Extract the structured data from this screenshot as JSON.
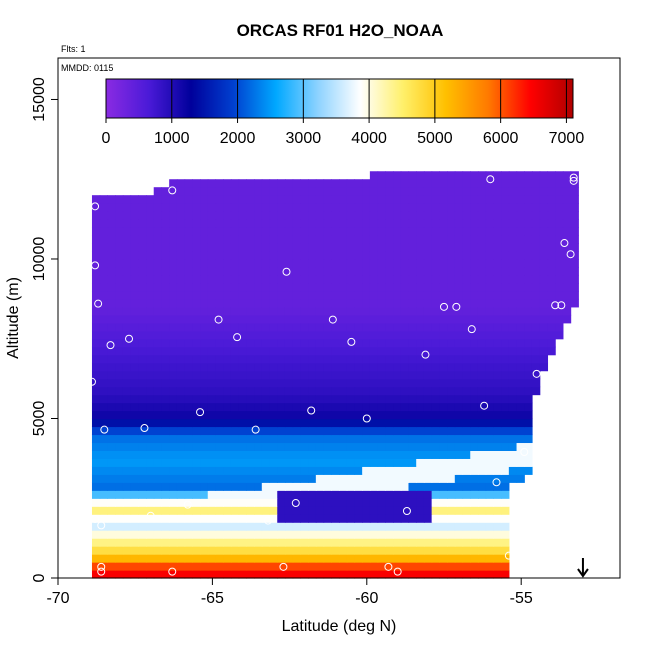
{
  "chart_data": {
    "type": "heatmap",
    "title": "ORCAS RF01 H2O_NOAA",
    "notes": [
      "Flts: 1",
      "MMDD: 0115"
    ],
    "xlabel": "Latitude (deg N)",
    "ylabel": "Altitude (m)",
    "xlim": [
      -70,
      -51.8
    ],
    "ylim": [
      0,
      16300
    ],
    "xticks": [
      -70,
      -65,
      -60,
      -55
    ],
    "xtick_labels": [
      "-70",
      "-65",
      "-60",
      "-55"
    ],
    "yticks": [
      0,
      5000,
      10000,
      15000
    ],
    "ytick_labels": [
      "0",
      "5000",
      "10000",
      "15000"
    ],
    "grid": false,
    "colorbar": {
      "range": [
        0,
        7100
      ],
      "ticks": [
        0,
        1000,
        2000,
        3000,
        4000,
        5000,
        6000,
        7000
      ],
      "tick_labels": [
        "0",
        "1000",
        "2000",
        "3000",
        "4000",
        "5000",
        "6000",
        "7000"
      ],
      "colors": [
        "#8a2be2",
        "#4b1ad8",
        "#00009b",
        "#0040d0",
        "#00a8ff",
        "#8fd3ff",
        "#ffffff",
        "#fff06a",
        "#ffc000",
        "#ff7a00",
        "#ff0000",
        "#b00000"
      ]
    },
    "coverage": [
      {
        "lat": -68.9,
        "top": 11900
      },
      {
        "lat": -67.2,
        "top": 12000
      },
      {
        "lat": -66.3,
        "top": 12400
      },
      {
        "lat": -62.0,
        "top": 12600
      },
      {
        "lat": -53.4,
        "top": 12700
      },
      {
        "lat": -53.2,
        "top": 12800
      }
    ],
    "layers": [
      {
        "alt": 8500,
        "value": 400
      },
      {
        "alt": 7000,
        "value": 700
      },
      {
        "alt": 5800,
        "value": 900
      },
      {
        "alt": 5000,
        "value": 1200
      },
      {
        "alt": 4500,
        "value": 2200
      },
      {
        "alt": 3700,
        "value": 2500
      },
      {
        "alt": 2800,
        "value": 2200
      },
      {
        "alt": 2200,
        "value": 4600
      },
      {
        "alt": 1700,
        "value": 3500
      },
      {
        "alt": 1200,
        "value": 4300
      },
      {
        "alt": 700,
        "value": 5000
      },
      {
        "alt": 250,
        "value": 6500
      }
    ],
    "points": [
      {
        "lat": -68.8,
        "alt": 11650
      },
      {
        "lat": -66.3,
        "alt": 12150
      },
      {
        "lat": -56.0,
        "alt": 12500
      },
      {
        "lat": -53.3,
        "alt": 12450
      },
      {
        "lat": -53.3,
        "alt": 12550
      },
      {
        "lat": -68.8,
        "alt": 9800
      },
      {
        "lat": -62.6,
        "alt": 9600
      },
      {
        "lat": -53.6,
        "alt": 10500
      },
      {
        "lat": -53.4,
        "alt": 10150
      },
      {
        "lat": -68.7,
        "alt": 8600
      },
      {
        "lat": -64.8,
        "alt": 8100
      },
      {
        "lat": -61.1,
        "alt": 8100
      },
      {
        "lat": -57.5,
        "alt": 8500
      },
      {
        "lat": -57.1,
        "alt": 8500
      },
      {
        "lat": -53.9,
        "alt": 8550
      },
      {
        "lat": -53.7,
        "alt": 8550
      },
      {
        "lat": -68.3,
        "alt": 7300
      },
      {
        "lat": -67.7,
        "alt": 7500
      },
      {
        "lat": -64.2,
        "alt": 7550
      },
      {
        "lat": -60.5,
        "alt": 7400
      },
      {
        "lat": -56.6,
        "alt": 7800
      },
      {
        "lat": -58.1,
        "alt": 7000
      },
      {
        "lat": -68.9,
        "alt": 6150
      },
      {
        "lat": -54.5,
        "alt": 6400
      },
      {
        "lat": -65.4,
        "alt": 5200
      },
      {
        "lat": -61.8,
        "alt": 5250
      },
      {
        "lat": -56.2,
        "alt": 5400
      },
      {
        "lat": -60.0,
        "alt": 5000
      },
      {
        "lat": -68.5,
        "alt": 4650
      },
      {
        "lat": -67.2,
        "alt": 4700
      },
      {
        "lat": -63.6,
        "alt": 4650
      },
      {
        "lat": -54.9,
        "alt": 3950
      },
      {
        "lat": -55.8,
        "alt": 3000
      },
      {
        "lat": -67.0,
        "alt": 1950
      },
      {
        "lat": -65.8,
        "alt": 2300
      },
      {
        "lat": -63.2,
        "alt": 1800
      },
      {
        "lat": -62.3,
        "alt": 2350
      },
      {
        "lat": -58.7,
        "alt": 2100
      },
      {
        "lat": -68.8,
        "alt": 1850
      },
      {
        "lat": -68.6,
        "alt": 1650
      },
      {
        "lat": -55.1,
        "alt": 1500
      },
      {
        "lat": -55.4,
        "alt": 700
      },
      {
        "lat": -62.7,
        "alt": 350
      },
      {
        "lat": -59.3,
        "alt": 350
      },
      {
        "lat": -59.0,
        "alt": 200
      },
      {
        "lat": -68.6,
        "alt": 350
      },
      {
        "lat": -68.6,
        "alt": 200
      },
      {
        "lat": -66.3,
        "alt": 200
      },
      {
        "lat": -55.2,
        "alt": 200
      }
    ],
    "markers": [
      {
        "lat": -53.0,
        "alt": 0,
        "shape": "down-arrow"
      }
    ]
  }
}
